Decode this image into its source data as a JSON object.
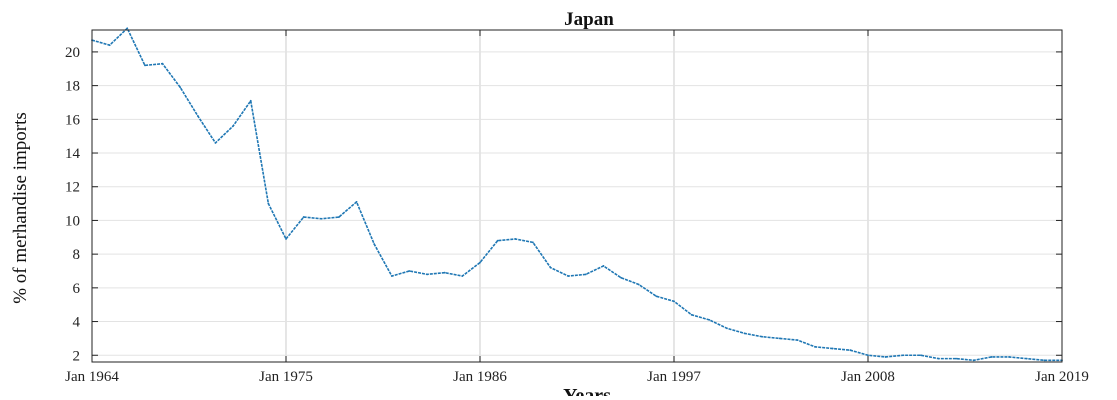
{
  "chart_data": {
    "type": "line",
    "title": "Japan",
    "xlabel": "Years",
    "ylabel": "% of merhandise imports",
    "x_ticks": [
      "Jan 1964",
      "Jan 1975",
      "Jan 1986",
      "Jan 1997",
      "Jan 2008",
      "Jan 2019"
    ],
    "y_ticks": [
      2,
      4,
      6,
      8,
      10,
      12,
      14,
      16,
      18,
      20
    ],
    "xlim": [
      1964,
      2019
    ],
    "ylim": [
      1.6,
      21.3
    ],
    "grid": true,
    "series": [
      {
        "color": "#1f77b4",
        "x": [
          1964,
          1965,
          1966,
          1967,
          1968,
          1969,
          1970,
          1971,
          1972,
          1973,
          1974,
          1975,
          1976,
          1977,
          1978,
          1979,
          1980,
          1981,
          1982,
          1983,
          1984,
          1985,
          1986,
          1987,
          1988,
          1989,
          1990,
          1991,
          1992,
          1993,
          1994,
          1995,
          1996,
          1997,
          1998,
          1999,
          2000,
          2001,
          2002,
          2003,
          2004,
          2005,
          2006,
          2007,
          2008,
          2009,
          2010,
          2011,
          2012,
          2013,
          2014,
          2015,
          2016,
          2017,
          2018,
          2019
        ],
        "values": [
          20.7,
          20.4,
          21.4,
          19.2,
          19.3,
          17.9,
          16.2,
          14.6,
          15.6,
          17.1,
          11.0,
          8.9,
          10.2,
          10.1,
          10.2,
          11.1,
          8.6,
          6.7,
          7.0,
          6.8,
          6.9,
          6.7,
          7.5,
          8.8,
          8.9,
          8.7,
          7.2,
          6.7,
          6.8,
          7.3,
          6.6,
          6.2,
          5.5,
          5.2,
          4.4,
          4.1,
          3.6,
          3.3,
          3.1,
          3.0,
          2.9,
          2.5,
          2.4,
          2.3,
          2.0,
          1.9,
          2.0,
          2.0,
          1.8,
          1.8,
          1.7,
          1.9,
          1.9,
          1.8,
          1.7,
          1.7
        ]
      }
    ]
  }
}
